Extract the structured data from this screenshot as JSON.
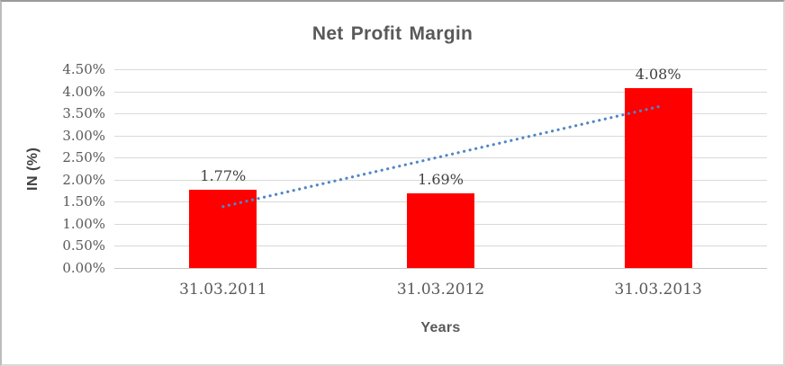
{
  "chart_data": {
    "type": "bar",
    "title": "Net Profit Margin",
    "xlabel": "Years",
    "ylabel": "IN (%)",
    "categories": [
      "31.03.2011",
      "31.03.2012",
      "31.03.2013"
    ],
    "values": [
      1.77,
      1.69,
      4.08
    ],
    "data_labels": [
      "1.77%",
      "1.69%",
      "4.08%"
    ],
    "ylim": [
      0,
      4.5
    ],
    "ytick_step": 0.5,
    "ytick_labels": [
      "0.00%",
      "0.50%",
      "1.00%",
      "1.50%",
      "2.00%",
      "2.50%",
      "3.00%",
      "3.50%",
      "4.00%",
      "4.50%"
    ],
    "grid": true,
    "legend": "none",
    "colors": {
      "bar": "#ff0000",
      "gridline": "#d9d9d9",
      "axis_line": "#c6c6c6",
      "title_text": "#595959",
      "tick_text": "#595959",
      "data_label_text": "#404040",
      "trendline": "#4f86c6"
    },
    "trendline": {
      "type": "linear",
      "style": "dotted",
      "start_value": 1.39,
      "end_value": 3.65
    }
  }
}
